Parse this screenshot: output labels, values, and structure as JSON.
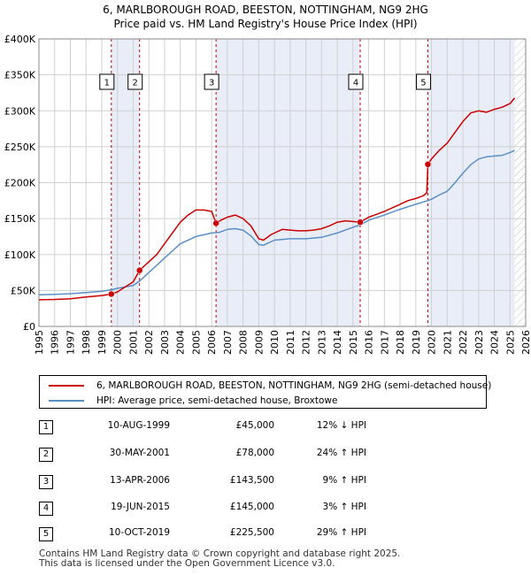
{
  "title": {
    "line1": "6, MARLBOROUGH ROAD, BEESTON, NOTTINGHAM, NG9 2HG",
    "line2": "Price paid vs. HM Land Registry's House Price Index (HPI)"
  },
  "colors": {
    "property": "#cc0000",
    "hpi": "#5b8fc7",
    "shade": "#e8edf8",
    "grid": "#d0d0d0",
    "vline": "#cc0000",
    "hatch": "#bbbbbb"
  },
  "chart_data": {
    "type": "line",
    "xlim": [
      1995,
      2026
    ],
    "ylim": [
      0,
      400000
    ],
    "y_ticks": [
      0,
      50000,
      100000,
      150000,
      200000,
      250000,
      300000,
      350000,
      400000
    ],
    "y_tick_labels": [
      "£0",
      "£50K",
      "£100K",
      "£150K",
      "£200K",
      "£250K",
      "£300K",
      "£350K",
      "£400K"
    ],
    "x_ticks": [
      1995,
      1996,
      1997,
      1998,
      1999,
      2000,
      2001,
      2002,
      2003,
      2004,
      2005,
      2006,
      2007,
      2008,
      2009,
      2010,
      2011,
      2012,
      2013,
      2014,
      2015,
      2016,
      2017,
      2018,
      2019,
      2020,
      2021,
      2022,
      2023,
      2024,
      2025,
      2026
    ],
    "x_tick_labels": [
      "1995",
      "1996",
      "1997",
      "1998",
      "1999",
      "2000",
      "2001",
      "2002",
      "2003",
      "2004",
      "2005",
      "2006",
      "2007",
      "2008",
      "2009",
      "2010",
      "2011",
      "2012",
      "2013",
      "2014",
      "2015",
      "2016",
      "2017",
      "2018",
      "2019",
      "2020",
      "2021",
      "2022",
      "2023",
      "2024",
      "2025",
      "2026"
    ],
    "grid": true,
    "shaded_ranges": [
      [
        1999.61,
        2001.41
      ],
      [
        2006.28,
        2015.46
      ],
      [
        2019.77,
        2025.3
      ]
    ],
    "hatched_after": 2025.3,
    "series": [
      {
        "name": "6, MARLBOROUGH ROAD, BEESTON, NOTTINGHAM, NG9 2HG (semi-detached house)",
        "color": "#cc0000",
        "x": [
          1995.0,
          1996.0,
          1997.0,
          1998.0,
          1999.0,
          1999.61,
          2000.0,
          2000.5,
          2001.0,
          2001.41,
          2002.0,
          2002.5,
          2003.0,
          2003.5,
          2004.0,
          2004.5,
          2005.0,
          2005.5,
          2006.0,
          2006.28,
          2006.6,
          2007.0,
          2007.5,
          2008.0,
          2008.5,
          2009.0,
          2009.3,
          2009.8,
          2010.5,
          2011.0,
          2011.5,
          2012.0,
          2012.5,
          2013.0,
          2013.5,
          2014.0,
          2014.5,
          2015.0,
          2015.46,
          2016.0,
          2016.5,
          2017.0,
          2017.5,
          2018.0,
          2018.5,
          2019.0,
          2019.5,
          2019.7,
          2019.77,
          2020.0,
          2020.5,
          2021.0,
          2021.5,
          2022.0,
          2022.5,
          2023.0,
          2023.5,
          2024.0,
          2024.5,
          2025.0,
          2025.3
        ],
        "values": [
          37000,
          37500,
          38500,
          41000,
          43000,
          45000,
          48000,
          55000,
          62000,
          78000,
          90000,
          100000,
          115000,
          130000,
          145000,
          155000,
          162000,
          162000,
          160000,
          143500,
          148000,
          152000,
          155000,
          150000,
          140000,
          122000,
          120000,
          128000,
          135000,
          134000,
          133000,
          133000,
          134000,
          136000,
          140000,
          145000,
          147000,
          146000,
          145000,
          152000,
          156000,
          160000,
          165000,
          170000,
          175000,
          178000,
          182000,
          186000,
          225500,
          233000,
          245000,
          255000,
          270000,
          285000,
          297000,
          300000,
          298000,
          302000,
          305000,
          310000,
          318000
        ]
      },
      {
        "name": "HPI: Average price, semi-detached house, Broxtowe",
        "color": "#5b8fc7",
        "x": [
          1995.0,
          1996.0,
          1997.0,
          1998.0,
          1999.0,
          1999.61,
          2000.0,
          2001.0,
          2001.41,
          2002.0,
          2003.0,
          2004.0,
          2005.0,
          2006.0,
          2006.5,
          2007.0,
          2007.5,
          2008.0,
          2008.5,
          2009.0,
          2009.3,
          2010.0,
          2011.0,
          2012.0,
          2013.0,
          2014.0,
          2015.0,
          2015.46,
          2016.0,
          2017.0,
          2018.0,
          2019.0,
          2019.77,
          2020.0,
          2020.5,
          2021.0,
          2021.5,
          2022.0,
          2022.5,
          2023.0,
          2023.5,
          2024.0,
          2024.5,
          2025.0,
          2025.3
        ],
        "values": [
          44000,
          44500,
          45500,
          47000,
          49000,
          51000,
          53000,
          57000,
          63000,
          75000,
          95000,
          115000,
          125000,
          130000,
          131000,
          135000,
          136000,
          134000,
          126000,
          114000,
          113000,
          120000,
          122000,
          122000,
          124000,
          130000,
          138000,
          141000,
          148000,
          155000,
          163000,
          170000,
          175000,
          177000,
          183000,
          188000,
          200000,
          213000,
          225000,
          233000,
          236000,
          237000,
          238000,
          242000,
          245000
        ]
      }
    ],
    "sales": [
      {
        "label": "1",
        "x": 1999.61,
        "value": 45000
      },
      {
        "label": "2",
        "x": 2001.41,
        "value": 78000
      },
      {
        "label": "3",
        "x": 2006.28,
        "value": 143500
      },
      {
        "label": "4",
        "x": 2015.46,
        "value": 145000
      },
      {
        "label": "5",
        "x": 2019.77,
        "value": 225500
      }
    ]
  },
  "legend": {
    "property_label": "6, MARLBOROUGH ROAD, BEESTON, NOTTINGHAM, NG9 2HG (semi-detached house)",
    "hpi_label": "HPI: Average price, semi-detached house, Broxtowe"
  },
  "sales_table": [
    {
      "num": "1",
      "date": "10-AUG-1999",
      "price": "£45,000",
      "hpi": "12% ↓ HPI"
    },
    {
      "num": "2",
      "date": "30-MAY-2001",
      "price": "£78,000",
      "hpi": "24% ↑ HPI"
    },
    {
      "num": "3",
      "date": "13-APR-2006",
      "price": "£143,500",
      "hpi": "9% ↑ HPI"
    },
    {
      "num": "4",
      "date": "19-JUN-2015",
      "price": "£145,000",
      "hpi": "3% ↑ HPI"
    },
    {
      "num": "5",
      "date": "10-OCT-2019",
      "price": "£225,500",
      "hpi": "29% ↑ HPI"
    }
  ],
  "footer": {
    "line1": "Contains HM Land Registry data © Crown copyright and database right 2025.",
    "line2": "This data is licensed under the Open Government Licence v3.0."
  }
}
